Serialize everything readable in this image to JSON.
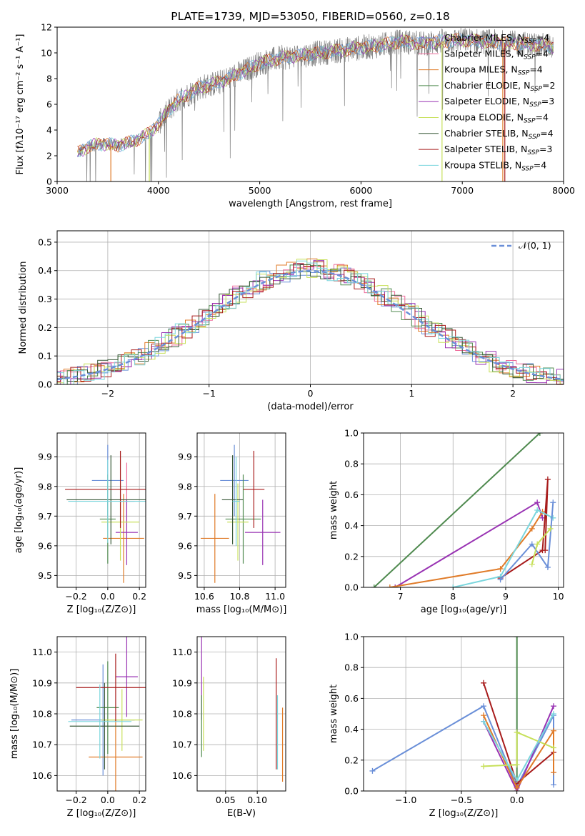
{
  "colors": {
    "Chabrier MILES": "#6a8fd8",
    "Salpeter MILES": "#ee6a9a",
    "Kroupa MILES": "#e07b28",
    "Chabrier ELODIE": "#4f8a4f",
    "Salpeter ELODIE": "#9933b3",
    "Kroupa ELODIE": "#c7e05a",
    "Chabrier STELIB": "#3a5a3a",
    "Salpeter STELIB": "#a81c1c",
    "Kroupa STELIB": "#7ad6dd",
    "normal": "#6a8fd8",
    "obs": "#7f7f7f"
  },
  "chart_data": [
    {
      "id": "spectrum",
      "type": "line",
      "title": "PLATE=1739, MJD=53050, FIBERID=0560, z=0.18",
      "xlabel": "wavelength [Angstrom, rest frame]",
      "ylabel": "Flux [fλ10⁻¹⁷ erg cm⁻² s⁻¹ A⁻¹]",
      "xlim": [
        3000,
        8000
      ],
      "ylim": [
        0,
        12
      ],
      "xticks": [
        "3000",
        "4000",
        "5000",
        "6000",
        "7000",
        "8000"
      ],
      "yticks": [
        "0",
        "2",
        "4",
        "6",
        "8",
        "10",
        "12"
      ],
      "legend": [
        {
          "label": "Chabrier MILES, N",
          "sub": "SSP",
          "tail": "=4"
        },
        {
          "label": "Salpeter MILES, N",
          "sub": "SSP",
          "tail": "=4"
        },
        {
          "label": "Kroupa MILES, N",
          "sub": "SSP",
          "tail": "=4"
        },
        {
          "label": "Chabrier ELODIE, N",
          "sub": "SSP",
          "tail": "=2"
        },
        {
          "label": "Salpeter ELODIE, N",
          "sub": "SSP",
          "tail": "=3"
        },
        {
          "label": "Kroupa ELODIE, N",
          "sub": "SSP",
          "tail": "=4"
        },
        {
          "label": "Chabrier STELIB, N",
          "sub": "SSP",
          "tail": "=4"
        },
        {
          "label": "Salpeter STELIB, N",
          "sub": "SSP",
          "tail": "=3"
        },
        {
          "label": "Kroupa STELIB, N",
          "sub": "SSP",
          "tail": "=4"
        }
      ],
      "legend_position": "lower right",
      "model_continuum": {
        "x": [
          3200,
          3300,
          3400,
          3500,
          3600,
          3700,
          3800,
          3900,
          4000,
          4100,
          4200,
          4300,
          4400,
          4600,
          4800,
          5000,
          5200,
          5400,
          5600,
          5800,
          6000,
          6200,
          6400,
          6600,
          6800,
          7000,
          7200,
          7400,
          7600,
          7800,
          7900
        ],
        "y": [
          2.2,
          2.7,
          2.9,
          2.9,
          2.8,
          3.0,
          3.3,
          3.7,
          4.5,
          5.5,
          6.4,
          6.8,
          7.3,
          7.7,
          8.4,
          9.2,
          9.6,
          9.8,
          10.0,
          10.2,
          10.4,
          10.6,
          10.9,
          10.7,
          10.9,
          11.0,
          10.9,
          10.8,
          10.7,
          10.6,
          10.5
        ]
      }
    },
    {
      "id": "residuals",
      "type": "histogram",
      "xlabel": "(data-model)/error",
      "ylabel": "Normed distribution",
      "xlim": [
        -2.5,
        2.5
      ],
      "ylim": [
        0,
        0.54
      ],
      "xticks": [
        "−2",
        "−1",
        "0",
        "1",
        "2"
      ],
      "yticks": [
        "0.0",
        "0.1",
        "0.2",
        "0.3",
        "0.4",
        "0.5"
      ],
      "legend": "𝒩(0, 1)",
      "grid": true
    },
    {
      "id": "age-vs-Z",
      "type": "errorbar",
      "xlabel": "Z [log₁₀(Z/Z⊙)]",
      "ylabel": "age  [log₁₀(age/yr)]",
      "xlim": [
        -0.32,
        0.24
      ],
      "ylim": [
        9.46,
        9.98
      ],
      "xticks": [
        "−0.2",
        "0.0",
        "0.2"
      ],
      "yticks": [
        "9.5",
        "9.6",
        "9.7",
        "9.8",
        "9.9"
      ],
      "series": [
        {
          "name": "Chabrier MILES",
          "x": 0.0,
          "xerr": 0.1,
          "y": 9.82,
          "yerr": 0.12
        },
        {
          "name": "Salpeter MILES",
          "x": 0.12,
          "xerr": 0.05,
          "y": 9.75,
          "yerr": 0.13
        },
        {
          "name": "Kroupa MILES",
          "x": 0.1,
          "xerr": 0.13,
          "y": 9.625,
          "yerr": 0.15
        },
        {
          "name": "Chabrier ELODIE",
          "x": 0.0,
          "xerr": 0.05,
          "y": 9.69,
          "yerr": 0.15
        },
        {
          "name": "Salpeter ELODIE",
          "x": 0.12,
          "xerr": 0.07,
          "y": 9.645,
          "yerr": 0.11
        },
        {
          "name": "Kroupa ELODIE",
          "x": 0.08,
          "xerr": 0.12,
          "y": 9.68,
          "yerr": 0.13
        },
        {
          "name": "Chabrier STELIB",
          "x": 0.02,
          "xerr": 0.28,
          "y": 9.755,
          "yerr": 0.15
        },
        {
          "name": "Salpeter STELIB",
          "x": 0.08,
          "xerr": 0.35,
          "y": 9.79,
          "yerr": 0.13
        },
        {
          "name": "Kroupa STELIB",
          "x": 0.0,
          "xerr": 0.25,
          "y": 9.75,
          "yerr": 0.14
        }
      ]
    },
    {
      "id": "age-vs-mass",
      "type": "errorbar",
      "xlabel": "mass [log₁₀(M/M⊙)]",
      "xlim": [
        10.56,
        11.06
      ],
      "ylim": [
        9.46,
        9.98
      ],
      "xticks": [
        "10.6",
        "10.8",
        "11.0"
      ],
      "yticks": [
        "9.5",
        "9.6",
        "9.7",
        "9.8",
        "9.9"
      ],
      "series": [
        {
          "name": "Chabrier MILES",
          "x": 10.77,
          "xerr": 0.08,
          "y": 9.82,
          "yerr": 0.12
        },
        {
          "name": "Kroupa MILES",
          "x": 10.66,
          "xerr": 0.08,
          "y": 9.625,
          "yerr": 0.15
        },
        {
          "name": "Chabrier ELODIE",
          "x": 10.82,
          "xerr": 0.1,
          "y": 9.69,
          "yerr": 0.15
        },
        {
          "name": "Salpeter ELODIE",
          "x": 10.93,
          "xerr": 0.1,
          "y": 9.645,
          "yerr": 0.11
        },
        {
          "name": "Kroupa ELODIE",
          "x": 10.79,
          "xerr": 0.06,
          "y": 9.68,
          "yerr": 0.13
        },
        {
          "name": "Chabrier STELIB",
          "x": 10.76,
          "xerr": 0.06,
          "y": 9.755,
          "yerr": 0.15
        },
        {
          "name": "Salpeter STELIB",
          "x": 10.88,
          "xerr": 0.06,
          "y": 9.79,
          "yerr": 0.13
        },
        {
          "name": "Kroupa STELIB",
          "x": 10.78,
          "xerr": 0.02,
          "y": 9.75,
          "yerr": 0.15
        }
      ]
    },
    {
      "id": "weight-vs-age",
      "type": "line",
      "xlabel": "age  [log₁₀(age/yr)]",
      "ylabel": "mass weight",
      "xlim": [
        6.3,
        10.1
      ],
      "ylim": [
        0,
        1.0
      ],
      "xticks": [
        "7",
        "8",
        "9",
        "10"
      ],
      "yticks": [
        "0.0",
        "0.2",
        "0.4",
        "0.6",
        "0.8",
        "1.0"
      ],
      "series": [
        {
          "name": "Chabrier ELODIE",
          "x": [
            6.5,
            9.65
          ],
          "y": [
            0.0,
            1.0
          ]
        },
        {
          "name": "Salpeter ELODIE",
          "x": [
            6.9,
            9.6,
            9.7
          ],
          "y": [
            0.0,
            0.55,
            0.45
          ]
        },
        {
          "name": "Kroupa MILES",
          "x": [
            6.8,
            8.9,
            9.5,
            9.7
          ],
          "y": [
            0.0,
            0.12,
            0.38,
            0.49
          ]
        },
        {
          "name": "Salpeter STELIB",
          "x": [
            8.9,
            9.7,
            9.8,
            9.75
          ],
          "y": [
            0.06,
            0.24,
            0.7,
            0.24
          ]
        },
        {
          "name": "Kroupa STELIB",
          "x": [
            8.0,
            8.9,
            9.6,
            9.9
          ],
          "y": [
            0.0,
            0.07,
            0.5,
            0.45
          ]
        },
        {
          "name": "Chabrier MILES",
          "x": [
            8.9,
            9.5,
            9.8,
            9.9
          ],
          "y": [
            0.05,
            0.28,
            0.13,
            0.55
          ]
        },
        {
          "name": "Kroupa ELODIE",
          "x": [
            9.5,
            9.6,
            9.85
          ],
          "y": [
            0.15,
            0.28,
            0.38
          ]
        }
      ]
    },
    {
      "id": "mass-vs-Z",
      "type": "errorbar",
      "xlabel": "Z [log₁₀(Z/Z⊙)]",
      "ylabel": "mass [log₁₀(M/M⊙)]",
      "xlim": [
        -0.32,
        0.24
      ],
      "ylim": [
        10.55,
        11.05
      ],
      "xticks": [
        "−0.2",
        "0.0",
        "0.2"
      ],
      "yticks": [
        "10.6",
        "10.7",
        "10.8",
        "10.9",
        "11.0"
      ],
      "series": [
        {
          "name": "Chabrier MILES",
          "x": -0.03,
          "xerr": 0.2,
          "y": 10.78,
          "yerr": 0.18
        },
        {
          "name": "Kroupa MILES",
          "x": 0.05,
          "xerr": 0.17,
          "y": 10.66,
          "yerr": 0.12
        },
        {
          "name": "Chabrier ELODIE",
          "x": 0.0,
          "xerr": 0.07,
          "y": 10.82,
          "yerr": 0.15
        },
        {
          "name": "Salpeter ELODIE",
          "x": 0.12,
          "xerr": 0.07,
          "y": 10.92,
          "yerr": 0.13
        },
        {
          "name": "Kroupa ELODIE",
          "x": 0.09,
          "xerr": 0.13,
          "y": 10.78,
          "yerr": 0.1
        },
        {
          "name": "Chabrier STELIB",
          "x": -0.02,
          "xerr": 0.22,
          "y": 10.76,
          "yerr": 0.14
        },
        {
          "name": "Salpeter STELIB",
          "x": 0.05,
          "xerr": 0.25,
          "y": 10.885,
          "yerr": 0.11
        },
        {
          "name": "Kroupa STELIB",
          "x": -0.05,
          "xerr": 0.2,
          "y": 10.775,
          "yerr": 0.12
        }
      ]
    },
    {
      "id": "mass-vs-ebv",
      "type": "errorbar",
      "xlabel": "E(B-V)",
      "xlim": [
        0.005,
        0.145
      ],
      "ylim": [
        10.55,
        11.05
      ],
      "xticks": [
        "0.05",
        "0.10"
      ],
      "yticks": [
        "10.6",
        "10.7",
        "10.8",
        "10.9",
        "11.0"
      ],
      "series": [
        {
          "name": "Salpeter ELODIE",
          "x": 0.012,
          "yerr": 0.14,
          "y": 10.92
        },
        {
          "name": "Kroupa ELODIE",
          "x": 0.015,
          "yerr": 0.12,
          "y": 10.8
        },
        {
          "name": "Chabrier ELODIE",
          "x": 0.012,
          "yerr": 0.1,
          "y": 10.76
        },
        {
          "name": "Salpeter STELIB",
          "x": 0.13,
          "yerr": 0.18,
          "y": 10.8
        },
        {
          "name": "Kroupa STELIB",
          "x": 0.132,
          "yerr": 0.12,
          "y": 10.74
        },
        {
          "name": "Kroupa MILES",
          "x": 0.14,
          "yerr": 0.12,
          "y": 10.7
        }
      ]
    },
    {
      "id": "weight-vs-Z",
      "type": "line",
      "xlabel": "Z [log₁₀(Z/Z⊙)]",
      "ylabel": "mass weight",
      "xlim": [
        -1.38,
        0.42
      ],
      "ylim": [
        0,
        1.0
      ],
      "xticks": [
        "−1.0",
        "−0.5",
        "0.0"
      ],
      "yticks": [
        "0.0",
        "0.2",
        "0.4",
        "0.6",
        "0.8",
        "1.0"
      ],
      "series": [
        {
          "name": "Chabrier ELODIE",
          "x": [
            0.0,
            0.0
          ],
          "y": [
            0.0,
            1.0
          ]
        },
        {
          "name": "Chabrier MILES",
          "x": [
            -1.3,
            -0.3,
            0.0,
            0.33,
            0.33
          ],
          "y": [
            0.13,
            0.55,
            0.03,
            0.49,
            0.04
          ]
        },
        {
          "name": "Salpeter STELIB",
          "x": [
            -0.3,
            0.0,
            0.33
          ],
          "y": [
            0.7,
            0.05,
            0.25
          ]
        },
        {
          "name": "Salpeter ELODIE",
          "x": [
            -0.3,
            0.0,
            0.33
          ],
          "y": [
            0.45,
            0.0,
            0.55
          ]
        },
        {
          "name": "Kroupa MILES",
          "x": [
            -0.3,
            0.0,
            0.33,
            0.33
          ],
          "y": [
            0.49,
            0.02,
            0.39,
            0.12
          ]
        },
        {
          "name": "Kroupa ELODIE",
          "x": [
            -0.3,
            0.0,
            0.0,
            0.33
          ],
          "y": [
            0.16,
            0.17,
            0.38,
            0.28
          ]
        },
        {
          "name": "Kroupa STELIB",
          "x": [
            -0.3,
            0.0,
            0.33
          ],
          "y": [
            0.45,
            0.07,
            0.5
          ]
        }
      ]
    }
  ]
}
